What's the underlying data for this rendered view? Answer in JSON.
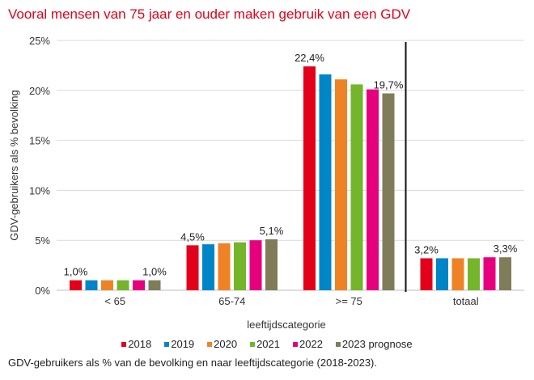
{
  "chart_data": {
    "type": "bar",
    "title": "Vooral mensen van 75 jaar en ouder maken gebruik van een GDV",
    "xlabel": "leeftijdscategorie",
    "ylabel": "GDV-gebruikers als % bevolking",
    "ylim": [
      0,
      25
    ],
    "yticks": [
      0,
      5,
      10,
      15,
      20,
      25
    ],
    "ytick_labels": [
      "0%",
      "5%",
      "10%",
      "15%",
      "20%",
      "25%"
    ],
    "grid": true,
    "legend_position": "bottom",
    "categories": [
      "< 65",
      "65-74",
      ">= 75",
      "totaal"
    ],
    "series": [
      {
        "name": "2018",
        "color": "#e2001a",
        "values": [
          1.0,
          4.5,
          22.4,
          3.2
        ]
      },
      {
        "name": "2019",
        "color": "#0085c7",
        "values": [
          1.0,
          4.6,
          21.6,
          3.2
        ]
      },
      {
        "name": "2020",
        "color": "#f08226",
        "values": [
          1.0,
          4.7,
          21.1,
          3.2
        ]
      },
      {
        "name": "2021",
        "color": "#74b52b",
        "values": [
          1.0,
          4.8,
          20.6,
          3.2
        ]
      },
      {
        "name": "2022",
        "color": "#e6007e",
        "values": [
          1.0,
          5.0,
          20.1,
          3.3
        ]
      },
      {
        "name": "2023 prognose",
        "color": "#7f7c59",
        "values": [
          1.0,
          5.1,
          19.7,
          3.3
        ]
      }
    ],
    "data_labels": [
      {
        "category": "< 65",
        "series": "2018",
        "text": "1,0%"
      },
      {
        "category": "< 65",
        "series": "2023 prognose",
        "text": "1,0%"
      },
      {
        "category": "65-74",
        "series": "2018",
        "text": "4,5%"
      },
      {
        "category": "65-74",
        "series": "2023 prognose",
        "text": "5,1%"
      },
      {
        "category": ">= 75",
        "series": "2018",
        "text": "22,4%"
      },
      {
        "category": ">= 75",
        "series": "2023 prognose",
        "text": "19,7%"
      },
      {
        "category": "totaal",
        "series": "2018",
        "text": "3,2%"
      },
      {
        "category": "totaal",
        "series": "2023 prognose",
        "text": "3,3%"
      }
    ],
    "separator_before_category": "totaal",
    "caption": "GDV-gebruikers als % van de bevolking en naar leeftijdscategorie (2018-2023)."
  }
}
